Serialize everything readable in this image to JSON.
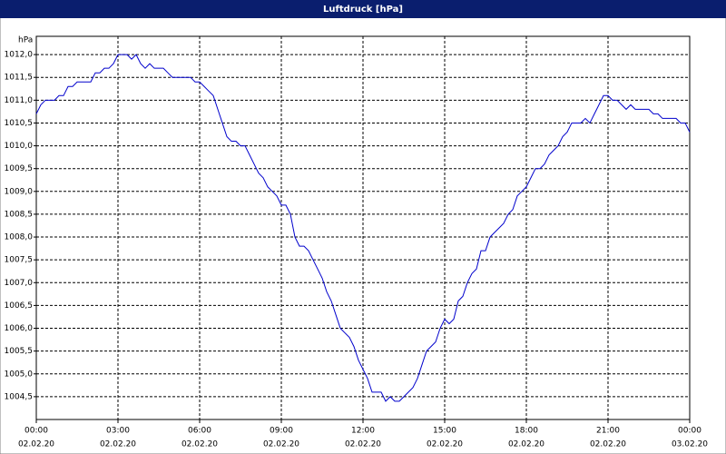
{
  "chart_data": {
    "type": "line",
    "title": "Luftdruck [hPa]",
    "y_unit_label": "hPa",
    "color": "#0000cc",
    "grid": true,
    "xlim": [
      0,
      1440
    ],
    "ylim": [
      1004.0,
      1012.4
    ],
    "xticks": [
      {
        "value": 0,
        "label": "00:00"
      },
      {
        "value": 180,
        "label": "03:00"
      },
      {
        "value": 360,
        "label": "06:00"
      },
      {
        "value": 540,
        "label": "09:00"
      },
      {
        "value": 720,
        "label": "12:00"
      },
      {
        "value": 900,
        "label": "15:00"
      },
      {
        "value": 1080,
        "label": "18:00"
      },
      {
        "value": 1260,
        "label": "21:00"
      },
      {
        "value": 1440,
        "label": "00:00"
      }
    ],
    "xtick_dates": [
      "02.02.20",
      "02.02.20",
      "02.02.20",
      "02.02.20",
      "02.02.20",
      "02.02.20",
      "02.02.20",
      "02.02.20",
      "03.02.20"
    ],
    "yticks": [
      {
        "value": 1004.5,
        "label": "1004,5"
      },
      {
        "value": 1005.0,
        "label": "1005,0"
      },
      {
        "value": 1005.5,
        "label": "1005,5"
      },
      {
        "value": 1006.0,
        "label": "1006,0"
      },
      {
        "value": 1006.5,
        "label": "1006,5"
      },
      {
        "value": 1007.0,
        "label": "1007,0"
      },
      {
        "value": 1007.5,
        "label": "1007,5"
      },
      {
        "value": 1008.0,
        "label": "1008,0"
      },
      {
        "value": 1008.5,
        "label": "1008,5"
      },
      {
        "value": 1009.0,
        "label": "1009,0"
      },
      {
        "value": 1009.5,
        "label": "1009,5"
      },
      {
        "value": 1010.0,
        "label": "1010,0"
      },
      {
        "value": 1010.5,
        "label": "1010,5"
      },
      {
        "value": 1011.0,
        "label": "1011,0"
      },
      {
        "value": 1011.5,
        "label": "1011,5"
      },
      {
        "value": 1012.0,
        "label": "1012,0"
      }
    ],
    "x": [
      0,
      10,
      20,
      30,
      40,
      50,
      60,
      70,
      80,
      90,
      100,
      110,
      120,
      130,
      140,
      150,
      160,
      170,
      180,
      190,
      200,
      210,
      220,
      230,
      240,
      250,
      260,
      270,
      280,
      290,
      300,
      310,
      320,
      330,
      340,
      350,
      360,
      370,
      380,
      390,
      400,
      410,
      420,
      430,
      440,
      450,
      460,
      470,
      480,
      490,
      500,
      510,
      520,
      530,
      540,
      550,
      560,
      570,
      580,
      590,
      600,
      610,
      620,
      630,
      640,
      650,
      660,
      670,
      680,
      690,
      700,
      710,
      720,
      730,
      740,
      750,
      760,
      770,
      780,
      790,
      800,
      810,
      820,
      830,
      840,
      850,
      860,
      870,
      880,
      890,
      900,
      910,
      920,
      930,
      940,
      950,
      960,
      970,
      980,
      990,
      1000,
      1010,
      1020,
      1030,
      1040,
      1050,
      1060,
      1070,
      1080,
      1090,
      1100,
      1110,
      1120,
      1130,
      1140,
      1150,
      1160,
      1170,
      1180,
      1190,
      1200,
      1210,
      1220,
      1230,
      1240,
      1250,
      1260,
      1270,
      1280,
      1290,
      1300,
      1310,
      1320,
      1330,
      1340,
      1350,
      1360,
      1370,
      1380,
      1390,
      1400,
      1410,
      1420,
      1430,
      1440
    ],
    "values": [
      1010.7,
      1010.9,
      1011.0,
      1011.0,
      1011.0,
      1011.1,
      1011.1,
      1011.3,
      1011.3,
      1011.4,
      1011.4,
      1011.4,
      1011.4,
      1011.6,
      1011.6,
      1011.7,
      1011.7,
      1011.8,
      1012.0,
      1012.0,
      1012.0,
      1011.9,
      1012.0,
      1011.8,
      1011.7,
      1011.8,
      1011.7,
      1011.7,
      1011.7,
      1011.6,
      1011.5,
      1011.5,
      1011.5,
      1011.5,
      1011.5,
      1011.4,
      1011.4,
      1011.3,
      1011.2,
      1011.1,
      1010.8,
      1010.5,
      1010.2,
      1010.1,
      1010.1,
      1010.0,
      1010.0,
      1009.8,
      1009.6,
      1009.4,
      1009.3,
      1009.1,
      1009.0,
      1008.9,
      1008.7,
      1008.7,
      1008.5,
      1008.0,
      1007.8,
      1007.8,
      1007.7,
      1007.5,
      1007.3,
      1007.1,
      1006.8,
      1006.6,
      1006.3,
      1006.0,
      1005.9,
      1005.8,
      1005.6,
      1005.3,
      1005.1,
      1004.9,
      1004.6,
      1004.6,
      1004.6,
      1004.4,
      1004.5,
      1004.4,
      1004.4,
      1004.5,
      1004.6,
      1004.7,
      1004.9,
      1005.2,
      1005.5,
      1005.6,
      1005.7,
      1006.0,
      1006.2,
      1006.1,
      1006.2,
      1006.6,
      1006.7,
      1007.0,
      1007.2,
      1007.3,
      1007.7,
      1007.7,
      1008.0,
      1008.1,
      1008.2,
      1008.3,
      1008.5,
      1008.6,
      1008.9,
      1009.0,
      1009.1,
      1009.3,
      1009.5,
      1009.5,
      1009.6,
      1009.8,
      1009.9,
      1010.0,
      1010.2,
      1010.3,
      1010.5,
      1010.5,
      1010.5,
      1010.6,
      1010.5,
      1010.7,
      1010.9,
      1011.1,
      1011.1,
      1011.0,
      1011.0,
      1010.9,
      1010.8,
      1010.9,
      1010.8,
      1010.8,
      1010.8,
      1010.8,
      1010.7,
      1010.7,
      1010.6,
      1010.6,
      1010.6,
      1010.6,
      1010.5,
      1010.5,
      1010.3
    ]
  }
}
